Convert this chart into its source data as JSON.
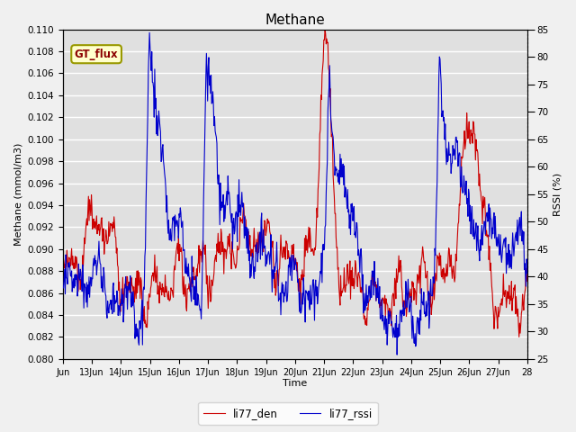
{
  "title": "Methane",
  "ylabel_left": "Methane (mmol/m3)",
  "ylabel_right": "RSSI (%)",
  "xlabel": "Time",
  "ylim_left": [
    0.08,
    0.11
  ],
  "ylim_right": [
    25,
    85
  ],
  "yticks_left": [
    0.08,
    0.082,
    0.084,
    0.086,
    0.088,
    0.09,
    0.092,
    0.094,
    0.096,
    0.098,
    0.1,
    0.102,
    0.104,
    0.106,
    0.108,
    0.11
  ],
  "yticks_right": [
    25,
    30,
    35,
    40,
    45,
    50,
    55,
    60,
    65,
    70,
    75,
    80,
    85
  ],
  "xtick_labels": [
    "Jun",
    "13Jun",
    "14Jun",
    "15Jun",
    "16Jun",
    "17Jun",
    "18Jun",
    "19Jun",
    "20Jun",
    "21Jun",
    "22Jun",
    "23Jun",
    "24Jun",
    "25Jun",
    "26Jun",
    "27Jun",
    "28"
  ],
  "color_den": "#cc0000",
  "color_rssi": "#0000cc",
  "legend_label_den": "li77_den",
  "legend_label_rssi": "li77_rssi",
  "gt_flux_label": "GT_flux",
  "plot_bg": "#e0e0e0",
  "fig_bg": "#f0f0f0",
  "grid_color": "#ffffff"
}
